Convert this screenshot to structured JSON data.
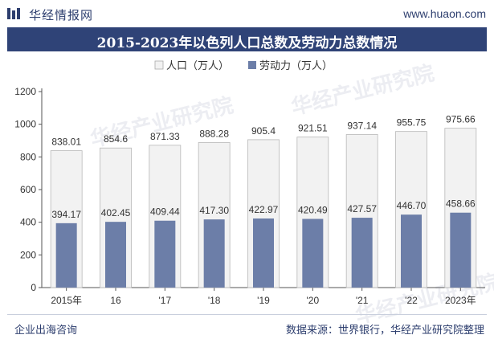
{
  "header": {
    "brand": "华经情报网",
    "site": "www.huaon.com"
  },
  "footer": {
    "left": "企业出海咨询",
    "right": "数据来源：世界银行，华经产业研究院整理"
  },
  "watermark": {
    "text": "华经产业研究院",
    "url": "www.huaon.com"
  },
  "colors": {
    "title_bg": "#2f4377",
    "population_bar": "#f2f2f2",
    "labor_bar": "#6c7ea8"
  },
  "chart_data": {
    "type": "bar",
    "title": "2015-2023年以色列人口总数及劳动力总数情况",
    "categories": [
      "2015年",
      "16",
      "'17",
      "'18",
      "'19",
      "'20",
      "'21",
      "'22",
      "2023年"
    ],
    "ylim": [
      0,
      1200
    ],
    "yticks": [
      0,
      200,
      400,
      600,
      800,
      1000,
      1200
    ],
    "grid": false,
    "legend_position": "top",
    "series": [
      {
        "name": "人口（万人）",
        "values": [
          838.01,
          854.6,
          871.33,
          888.28,
          905.4,
          921.51,
          937.14,
          955.75,
          975.66
        ],
        "labels": [
          "838.01",
          "854.6",
          "871.33",
          "888.28",
          "905.4",
          "921.51",
          "937.14",
          "955.75",
          "975.66"
        ]
      },
      {
        "name": "劳动力（万人）",
        "values": [
          394.17,
          402.45,
          409.44,
          417.3,
          422.97,
          420.49,
          427.57,
          446.7,
          458.66
        ],
        "labels": [
          "394.17",
          "402.45",
          "409.44",
          "417.30",
          "422.97",
          "420.49",
          "427.57",
          "446.70",
          "458.66"
        ]
      }
    ]
  }
}
